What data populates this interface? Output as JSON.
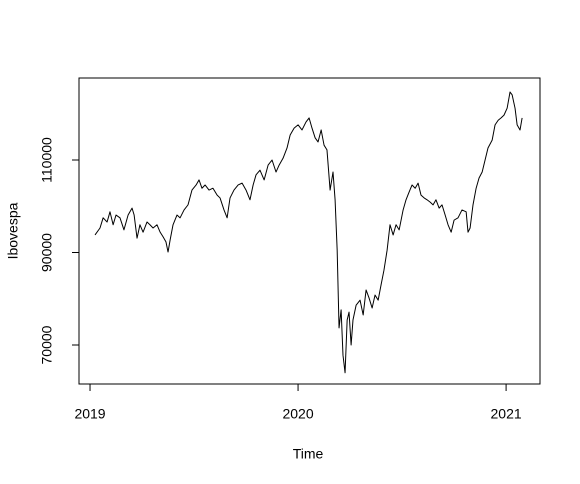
{
  "chart_data": {
    "type": "line",
    "x_label": "Time",
    "y_label": "Ibovespa",
    "color": "#000000",
    "xlim": [
      2018.947,
      2021.163
    ],
    "ylim": [
      61570,
      127730
    ],
    "xticks": [
      2019,
      2020,
      2021
    ],
    "yticks": [
      70000,
      90000,
      110000
    ],
    "x": [
      2019.024,
      2019.048,
      2019.063,
      2019.082,
      2019.096,
      2019.111,
      2019.125,
      2019.144,
      2019.163,
      2019.183,
      2019.202,
      2019.212,
      2019.226,
      2019.24,
      2019.255,
      2019.274,
      2019.288,
      2019.303,
      2019.322,
      2019.337,
      2019.351,
      2019.365,
      2019.375,
      2019.385,
      2019.399,
      2019.418,
      2019.433,
      2019.452,
      2019.471,
      2019.49,
      2019.51,
      2019.524,
      2019.538,
      2019.553,
      2019.572,
      2019.591,
      2019.611,
      2019.625,
      2019.644,
      2019.659,
      2019.673,
      2019.692,
      2019.712,
      2019.731,
      2019.75,
      2019.769,
      2019.784,
      2019.798,
      2019.817,
      2019.837,
      2019.856,
      2019.875,
      2019.894,
      2019.909,
      2019.928,
      2019.947,
      2019.962,
      2019.981,
      2020.0,
      2020.019,
      2020.038,
      2020.053,
      2020.067,
      2020.082,
      2020.096,
      2020.111,
      2020.125,
      2020.139,
      2020.154,
      2020.168,
      2020.178,
      2020.188,
      2020.197,
      2020.207,
      2020.216,
      2020.226,
      2020.236,
      2020.245,
      2020.255,
      2020.264,
      2020.279,
      2020.298,
      2020.313,
      2020.327,
      2020.341,
      2020.356,
      2020.37,
      2020.385,
      2020.399,
      2020.413,
      2020.428,
      2020.442,
      2020.457,
      2020.471,
      2020.486,
      2020.505,
      2020.519,
      2020.534,
      2020.548,
      2020.563,
      2020.577,
      2020.591,
      2020.606,
      2020.62,
      2020.635,
      2020.649,
      2020.663,
      2020.678,
      2020.692,
      2020.707,
      2020.721,
      2020.736,
      2020.75,
      2020.769,
      2020.788,
      2020.808,
      2020.817,
      2020.827,
      2020.841,
      2020.856,
      2020.87,
      2020.885,
      2020.899,
      2020.913,
      2020.933,
      2020.947,
      2020.962,
      2020.976,
      2020.99,
      2021.005,
      2021.019,
      2021.029,
      2021.043,
      2021.053,
      2021.067,
      2021.077
    ],
    "values": [
      93800,
      95300,
      97500,
      96600,
      98800,
      96000,
      98100,
      97500,
      94900,
      98100,
      99600,
      98100,
      93100,
      96000,
      94400,
      96600,
      96000,
      95300,
      96000,
      94400,
      93400,
      92300,
      90100,
      92700,
      96000,
      98100,
      97500,
      99200,
      100300,
      103500,
      104600,
      105700,
      103900,
      104600,
      103500,
      103900,
      102400,
      101800,
      99200,
      97500,
      101800,
      103500,
      104600,
      105000,
      103500,
      101400,
      104600,
      106800,
      107800,
      105700,
      108900,
      110000,
      107400,
      108900,
      110400,
      112600,
      115400,
      116900,
      117600,
      116500,
      118200,
      119100,
      116900,
      114800,
      113900,
      116500,
      113200,
      112200,
      103500,
      107400,
      101400,
      90500,
      73700,
      77600,
      67800,
      64000,
      75400,
      77100,
      70000,
      75400,
      78600,
      79700,
      76500,
      81900,
      80200,
      78000,
      80800,
      79700,
      83000,
      86200,
      90500,
      96000,
      93800,
      96000,
      94900,
      99200,
      101400,
      103100,
      104600,
      103900,
      105000,
      102400,
      101800,
      101400,
      100900,
      100300,
      101400,
      99600,
      100300,
      98100,
      96000,
      94400,
      97000,
      97500,
      99200,
      98800,
      94400,
      95300,
      100300,
      103900,
      106100,
      107400,
      110000,
      112600,
      114300,
      117600,
      118600,
      119100,
      119700,
      121200,
      124700,
      124100,
      121200,
      117600,
      116500,
      119100
    ]
  }
}
